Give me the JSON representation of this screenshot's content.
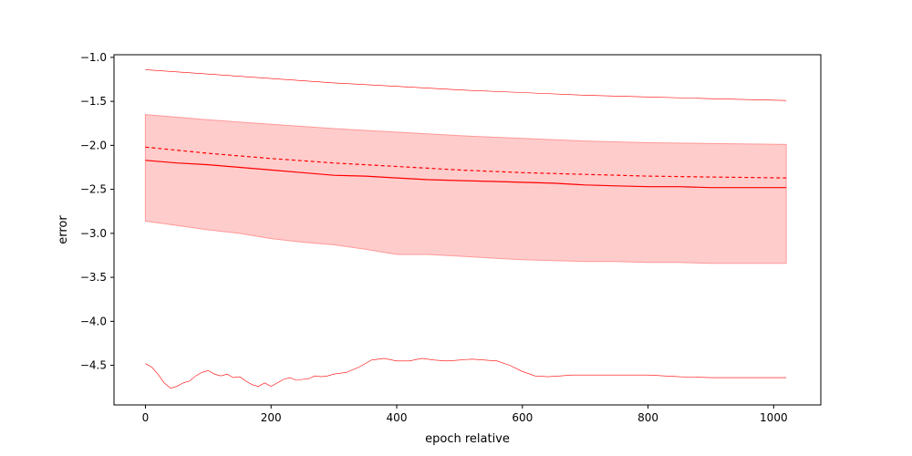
{
  "chart_data": {
    "type": "line",
    "title": "",
    "xlabel": "epoch relative",
    "ylabel": "error",
    "xlim": [
      -50,
      1075
    ],
    "ylim": [
      -4.95,
      -0.97
    ],
    "x_ticks": [
      0,
      200,
      400,
      600,
      800,
      1000
    ],
    "x_tick_labels": [
      "0",
      "200",
      "400",
      "600",
      "800",
      "1000"
    ],
    "y_ticks": [
      -1.0,
      -1.5,
      -2.0,
      -2.5,
      -3.0,
      -3.5,
      -4.0,
      -4.5
    ],
    "y_tick_labels": [
      "−1.0",
      "−1.5",
      "−2.0",
      "−2.5",
      "−3.0",
      "−3.5",
      "−4.0",
      "−4.5"
    ],
    "grid": false,
    "legend": "none",
    "color": "#ff0000",
    "band_color": "#ffcccc",
    "band_edge_color": "#ff9999",
    "series": [
      {
        "role": "upper-envelope",
        "style": "thin",
        "x": [
          0,
          100,
          200,
          300,
          400,
          500,
          600,
          700,
          800,
          900,
          1020
        ],
        "values": [
          -1.14,
          -1.19,
          -1.24,
          -1.29,
          -1.33,
          -1.37,
          -1.4,
          -1.43,
          -1.45,
          -1.47,
          -1.49
        ]
      },
      {
        "role": "band-upper",
        "x": [
          0,
          100,
          200,
          300,
          400,
          500,
          600,
          700,
          800,
          900,
          1020
        ],
        "values": [
          -1.65,
          -1.71,
          -1.76,
          -1.81,
          -1.85,
          -1.89,
          -1.92,
          -1.95,
          -1.97,
          -1.98,
          -1.99
        ]
      },
      {
        "role": "band-lower",
        "x": [
          0,
          30,
          60,
          100,
          150,
          200,
          250,
          300,
          350,
          400,
          450,
          500,
          550,
          600,
          650,
          700,
          750,
          800,
          850,
          900,
          950,
          1020
        ],
        "values": [
          -2.86,
          -2.89,
          -2.92,
          -2.96,
          -3.0,
          -3.06,
          -3.1,
          -3.13,
          -3.18,
          -3.24,
          -3.24,
          -3.26,
          -3.28,
          -3.3,
          -3.31,
          -3.32,
          -3.32,
          -3.33,
          -3.33,
          -3.34,
          -3.34,
          -3.34
        ]
      },
      {
        "role": "dashed",
        "style": "dashed",
        "x": [
          0,
          100,
          200,
          300,
          400,
          500,
          600,
          700,
          800,
          900,
          1020
        ],
        "values": [
          -2.02,
          -2.09,
          -2.15,
          -2.2,
          -2.24,
          -2.28,
          -2.31,
          -2.33,
          -2.35,
          -2.36,
          -2.37
        ]
      },
      {
        "role": "mean",
        "style": "solid",
        "x": [
          0,
          50,
          100,
          150,
          200,
          250,
          300,
          350,
          400,
          450,
          500,
          550,
          600,
          650,
          700,
          750,
          800,
          850,
          900,
          950,
          1020
        ],
        "values": [
          -2.17,
          -2.2,
          -2.22,
          -2.25,
          -2.28,
          -2.31,
          -2.34,
          -2.35,
          -2.37,
          -2.39,
          -2.4,
          -2.41,
          -2.42,
          -2.43,
          -2.45,
          -2.46,
          -2.47,
          -2.47,
          -2.48,
          -2.48,
          -2.48
        ]
      },
      {
        "role": "lower-envelope",
        "style": "thin",
        "x": [
          0,
          10,
          20,
          30,
          40,
          50,
          60,
          70,
          80,
          90,
          100,
          110,
          120,
          130,
          140,
          150,
          160,
          170,
          180,
          190,
          200,
          210,
          220,
          230,
          240,
          250,
          260,
          270,
          280,
          290,
          300,
          320,
          340,
          360,
          380,
          400,
          420,
          440,
          460,
          480,
          500,
          520,
          540,
          560,
          580,
          600,
          620,
          640,
          660,
          680,
          700,
          750,
          800,
          850,
          900,
          950,
          1020
        ],
        "values": [
          -4.48,
          -4.52,
          -4.6,
          -4.7,
          -4.76,
          -4.74,
          -4.7,
          -4.68,
          -4.62,
          -4.58,
          -4.56,
          -4.6,
          -4.62,
          -4.6,
          -4.64,
          -4.63,
          -4.68,
          -4.72,
          -4.74,
          -4.7,
          -4.74,
          -4.7,
          -4.66,
          -4.64,
          -4.67,
          -4.66,
          -4.65,
          -4.62,
          -4.63,
          -4.62,
          -4.6,
          -4.58,
          -4.52,
          -4.44,
          -4.42,
          -4.45,
          -4.45,
          -4.42,
          -4.44,
          -4.45,
          -4.44,
          -4.43,
          -4.44,
          -4.45,
          -4.5,
          -4.57,
          -4.62,
          -4.63,
          -4.62,
          -4.61,
          -4.61,
          -4.61,
          -4.61,
          -4.63,
          -4.64,
          -4.64,
          -4.64
        ]
      }
    ]
  }
}
